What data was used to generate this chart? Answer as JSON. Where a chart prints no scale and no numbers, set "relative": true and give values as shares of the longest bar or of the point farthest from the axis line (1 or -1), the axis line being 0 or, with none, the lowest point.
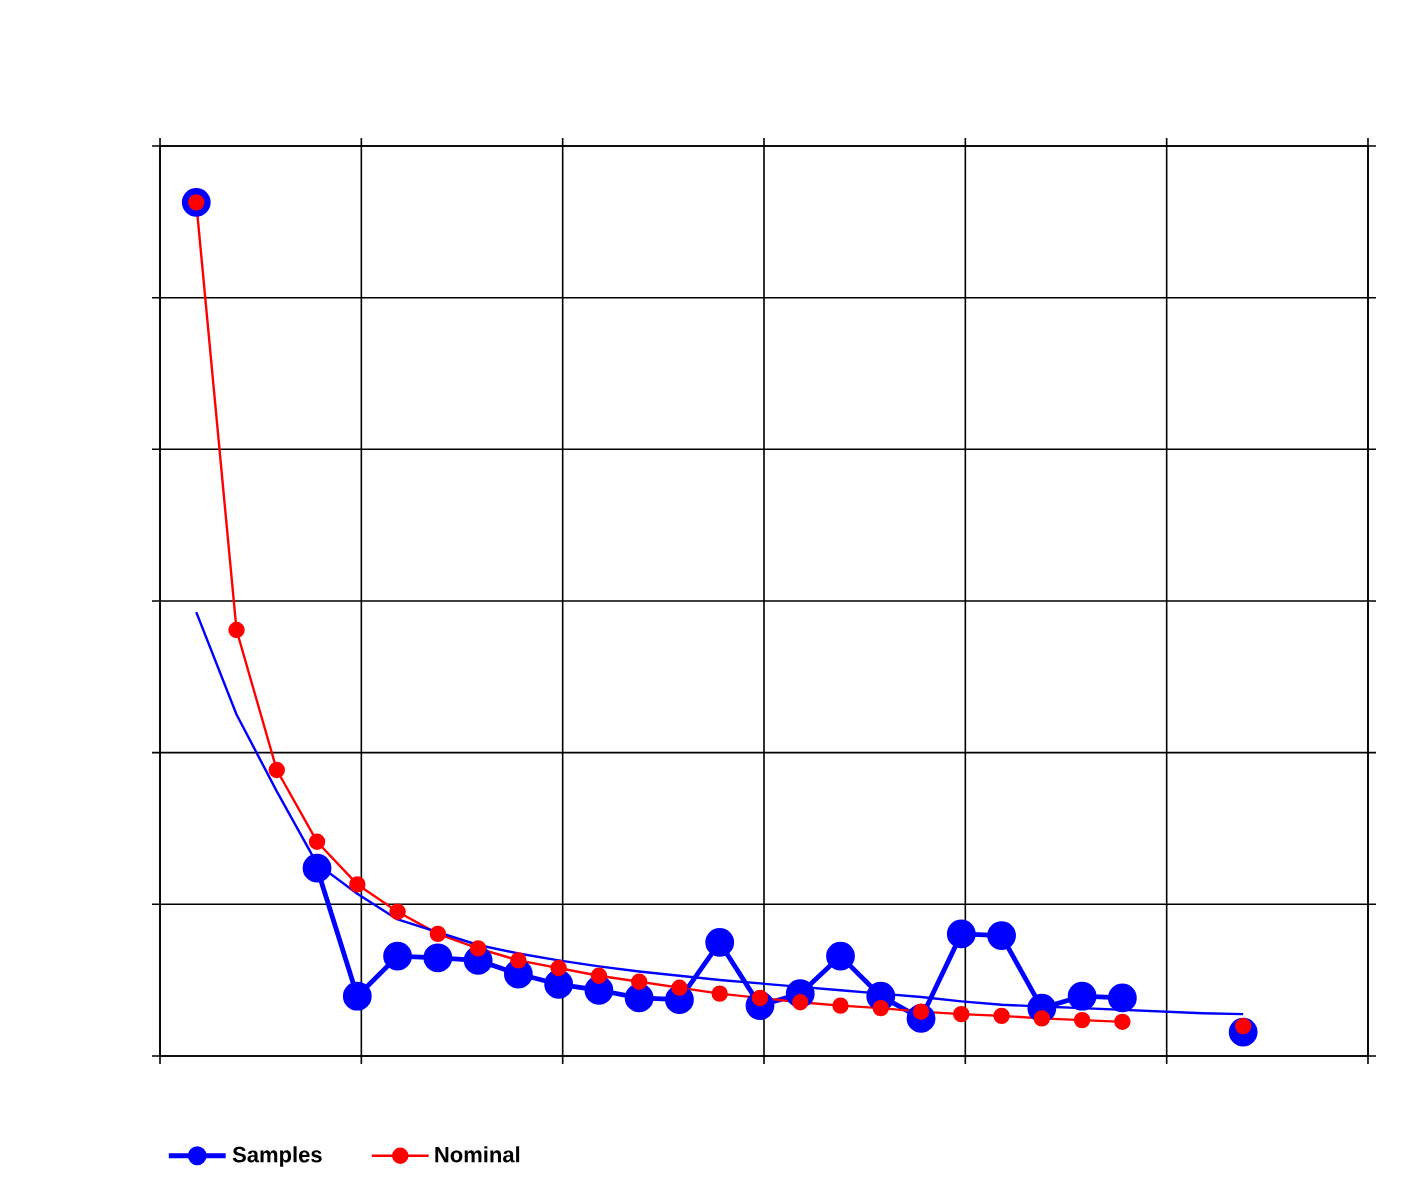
{
  "chart_data": {
    "type": "line",
    "relative": true,
    "grid": true,
    "legend": "bottom",
    "marker": "circle",
    "line_style": "solid",
    "categories": [
      null,
      null,
      null,
      null,
      null,
      null,
      null,
      null,
      null,
      null,
      null,
      null,
      null,
      null,
      null,
      null,
      null,
      null,
      null,
      null,
      null,
      null,
      null,
      null,
      null,
      null,
      null
    ],
    "series": [
      {
        "name": "Samples",
        "color": "#0000ff",
        "values": [
          1,
          null,
          null,
          0.22,
          0.07,
          0.117,
          0.115,
          0.112,
          0.096,
          0.084,
          0.077,
          0.068,
          0.066,
          0.133,
          0.059,
          0.073,
          0.117,
          0.07,
          0.044,
          0.143,
          0.141,
          0.056,
          0.07,
          0.068,
          null,
          null,
          0.028
        ]
      },
      {
        "name": "Nominal",
        "color": "#ff0000",
        "values": [
          1,
          0.499,
          0.335,
          0.251,
          0.201,
          0.169,
          0.143,
          0.126,
          0.112,
          0.103,
          0.094,
          0.087,
          0.08,
          0.073,
          0.068,
          0.063,
          0.059,
          0.056,
          0.052,
          0.049,
          0.047,
          0.044,
          0.042,
          0.04,
          null,
          null,
          0.035
        ]
      },
      {
        "color": "#0000ff",
        "marker": "none",
        "values": [
          0.52,
          0.4,
          0.31,
          0.225,
          0.19,
          0.16,
          0.145,
          0.13,
          0.12,
          0.112,
          0.105,
          0.099,
          0.094,
          0.089,
          0.085,
          0.081,
          0.077,
          0.073,
          0.069,
          0.064,
          0.06,
          0.058,
          0.056,
          0.054,
          0.052,
          0.05,
          0.049
        ]
      }
    ]
  }
}
